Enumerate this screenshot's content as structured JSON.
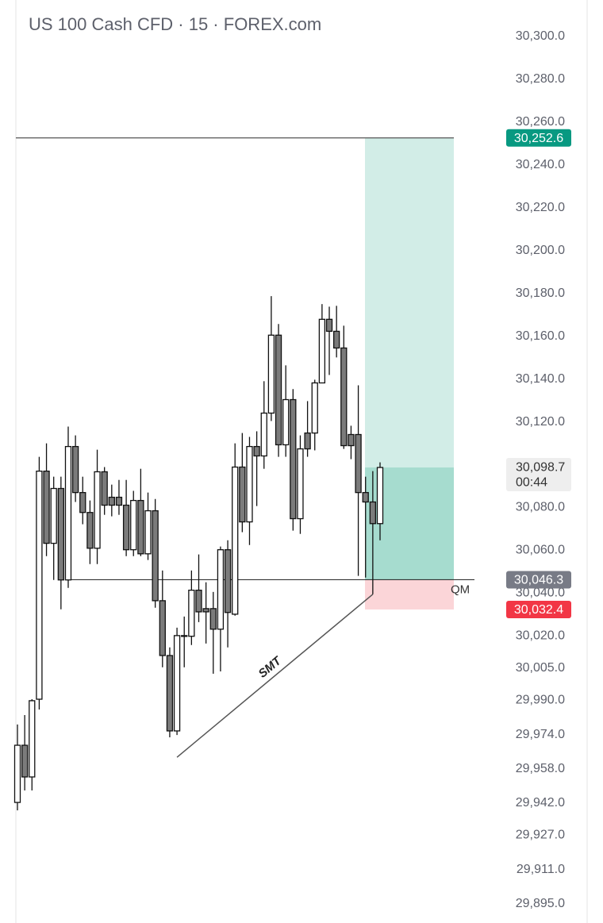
{
  "chart_data": {
    "type": "candlestick",
    "title": "US 100 Cash CFD · 15 · FOREX.com",
    "up_color": "#ffffff",
    "down_color": "#7b7b7b",
    "open": [
      29942.3,
      29969.0,
      29954.2,
      29990.5,
      30097.0,
      30063.3,
      30088.9,
      30046.2,
      30108.5,
      30087.0,
      30077.7,
      30061.0,
      30096.7,
      30084.8,
      30084.8,
      30081.1,
      30060.3,
      30083.3,
      30058.4,
      30078.5,
      30036.5,
      30010.9,
      29975.7,
      30019.9,
      30019.9,
      30041.4,
      30032.8,
      30032.8,
      30023.2,
      30060.3,
      30030.2,
      30098.9,
      30073.3,
      30108.5,
      30104.1,
      30124.1,
      30160.5,
      30109.3,
      30130.4,
      30074.8,
      30114.8,
      30114.8,
      30138.2,
      30167.9,
      30162.3,
      30154.5,
      30114.1,
      30114.1,
      30087.0,
      30082.6,
      30072.5
    ],
    "high": [
      29978.7,
      29983.1,
      29990.5,
      30103.7,
      30110.0,
      30094.4,
      30094.4,
      30117.8,
      30113.7,
      30094.4,
      30083.3,
      30107.0,
      30098.9,
      30090.7,
      30092.9,
      30092.9,
      30087.8,
      30098.1,
      30087.0,
      30084.0,
      30050.6,
      30014.7,
      30023.9,
      30029.1,
      30050.6,
      30058.1,
      30045.1,
      30040.6,
      30061.8,
      30064.7,
      30110.0,
      30114.8,
      30113.0,
      30115.6,
      30139.0,
      30178.7,
      30165.7,
      30146.4,
      30135.3,
      30113.7,
      30129.7,
      30139.7,
      30175.0,
      30173.8,
      30174.2,
      30164.9,
      30118.2,
      30137.1,
      30094.4,
      30097.0,
      30101.1
    ],
    "low": [
      29938.6,
      29947.9,
      29947.9,
      29985.7,
      30057.3,
      30046.2,
      30032.5,
      30042.5,
      30082.6,
      30072.2,
      30053.6,
      30053.6,
      30076.6,
      30075.9,
      30076.6,
      30057.3,
      30057.3,
      30057.3,
      30055.5,
      30033.2,
      30005.4,
      29972.7,
      29973.8,
      30005.4,
      30015.8,
      30026.5,
      30016.5,
      30002.4,
      30003.5,
      30014.7,
      30029.5,
      30068.5,
      30062.5,
      30080.7,
      30098.1,
      30120.4,
      30103.7,
      30103.7,
      30069.2,
      30067.7,
      30103.7,
      30106.7,
      30138.2,
      30141.9,
      30150.1,
      30107.4,
      30102.6,
      30048.1,
      30047.3,
      30039.5,
      30064.7
    ],
    "close": [
      29969.0,
      29954.2,
      29989.8,
      30097.0,
      30063.3,
      30088.9,
      30046.2,
      30108.5,
      30087.0,
      30077.7,
      30061.0,
      30096.7,
      30081.1,
      30081.1,
      30081.1,
      30060.3,
      30083.3,
      30058.4,
      30078.5,
      30036.5,
      30010.9,
      29975.7,
      30020.2,
      30020.2,
      30041.4,
      30031.3,
      30031.3,
      30023.2,
      30060.3,
      30031.0,
      30098.9,
      30073.3,
      30108.5,
      30104.1,
      30124.1,
      30160.5,
      30109.3,
      30130.4,
      30074.8,
      30107.4,
      30107.4,
      30138.2,
      30167.9,
      30162.3,
      30154.5,
      30108.9,
      30108.9,
      30087.0,
      30082.6,
      30072.5,
      30098.7
    ],
    "ylim": [
      29886,
      30317
    ],
    "yticks": [
      {
        "value": 30300,
        "label": "30,300.0"
      },
      {
        "value": 30280,
        "label": "30,280.0"
      },
      {
        "value": 30260,
        "label": "30,260.0"
      },
      {
        "value": 30240,
        "label": "30,240.0"
      },
      {
        "value": 30220,
        "label": "30,220.0"
      },
      {
        "value": 30200,
        "label": "30,200.0"
      },
      {
        "value": 30180,
        "label": "30,180.0"
      },
      {
        "value": 30160,
        "label": "30,160.0"
      },
      {
        "value": 30140,
        "label": "30,140.0"
      },
      {
        "value": 30120,
        "label": "30,120.0"
      },
      {
        "value": 30100,
        "label": "30,100.0"
      },
      {
        "value": 30080,
        "label": "30,080.0"
      },
      {
        "value": 30060,
        "label": "30,060.0"
      },
      {
        "value": 30040,
        "label": "30,040.0"
      },
      {
        "value": 30020,
        "label": "30,020.0"
      },
      {
        "value": 30005,
        "label": "30,005.0"
      },
      {
        "value": 29990,
        "label": "29,990.0"
      },
      {
        "value": 29974,
        "label": "29,974.0"
      },
      {
        "value": 29958,
        "label": "29,958.0"
      },
      {
        "value": 29942,
        "label": "29,942.0"
      },
      {
        "value": 29927,
        "label": "29,927.0"
      },
      {
        "value": 29911,
        "label": "29,911.0"
      },
      {
        "value": 29895,
        "label": "29,895.0"
      }
    ],
    "grid": false,
    "position": {
      "target": {
        "value": 30252.6,
        "label": "30,252.6",
        "color": "#089981"
      },
      "entry": {
        "value": 30046.3,
        "label": "30,046.3",
        "color": "#787b86"
      },
      "stop": {
        "value": 30032.4,
        "label": "30,032.4",
        "color": "#f23645"
      }
    },
    "entry_line_label": "QM",
    "current_price": {
      "value": 30098.7,
      "label": "30,098.7",
      "countdown": "00:44",
      "color": "#eeeeee"
    },
    "smt": {
      "label": "SMT",
      "from": 29963.4,
      "to": 30039.5
    }
  }
}
